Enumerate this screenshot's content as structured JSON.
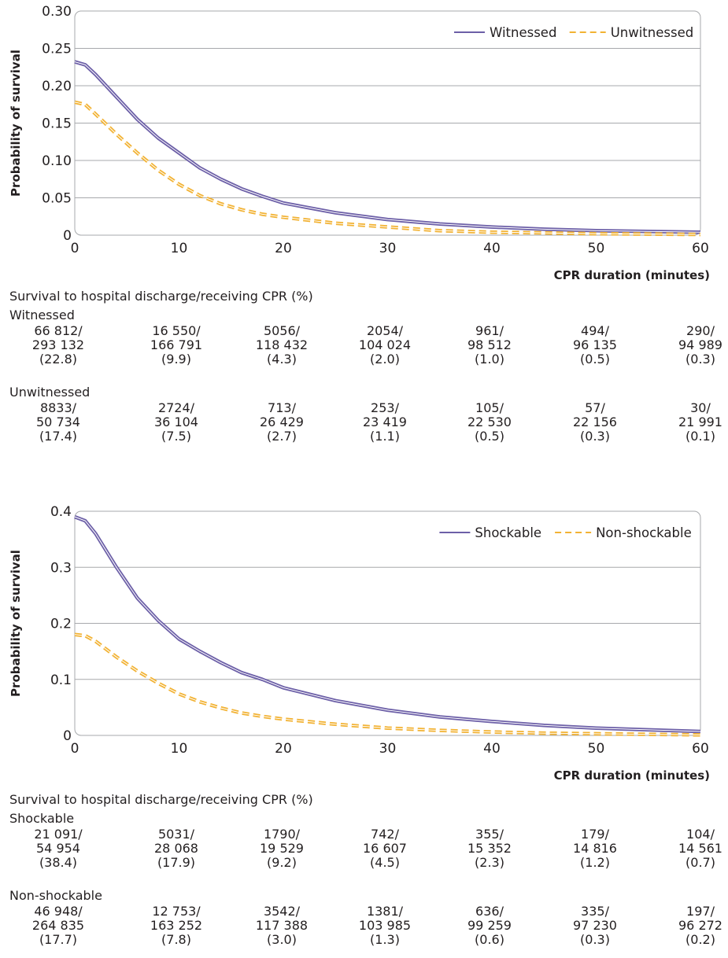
{
  "chart_data": [
    {
      "type": "line",
      "title": "",
      "xlabel": "CPR duration (minutes)",
      "ylabel": "Probability of survival",
      "xlim": [
        0,
        60
      ],
      "ylim": [
        0,
        0.3
      ],
      "xticks": [
        "0",
        "10",
        "20",
        "30",
        "40",
        "50",
        "60"
      ],
      "yticks": [
        "0",
        "0.05",
        "0.10",
        "0.15",
        "0.20",
        "0.25",
        "0.30"
      ],
      "grid": true,
      "legend_position": "top-right",
      "series": [
        {
          "name": "Witnessed",
          "style": "solid",
          "color": "#6c5fa7",
          "x": [
            0,
            1,
            2,
            4,
            6,
            8,
            10,
            12,
            14,
            16,
            18,
            20,
            25,
            30,
            35,
            40,
            45,
            50,
            55,
            60
          ],
          "y": [
            0.232,
            0.228,
            0.215,
            0.185,
            0.155,
            0.13,
            0.11,
            0.09,
            0.075,
            0.062,
            0.052,
            0.043,
            0.03,
            0.021,
            0.015,
            0.011,
            0.008,
            0.006,
            0.005,
            0.004
          ]
        },
        {
          "name": "Unwitnessed",
          "style": "dashed",
          "color": "#f2b233",
          "x": [
            0,
            1,
            2,
            4,
            6,
            8,
            10,
            12,
            14,
            16,
            18,
            20,
            25,
            30,
            35,
            40,
            45,
            50,
            55,
            60
          ],
          "y": [
            0.178,
            0.175,
            0.162,
            0.135,
            0.11,
            0.087,
            0.068,
            0.053,
            0.042,
            0.034,
            0.028,
            0.024,
            0.016,
            0.011,
            0.006,
            0.004,
            0.003,
            0.002,
            0.0015,
            0.001
          ]
        }
      ],
      "table": {
        "header": "Survival to hospital discharge/receiving CPR (%)",
        "groups": [
          {
            "name": "Witnessed",
            "cells": [
              [
                "66 812/",
                "293 132",
                "(22.8)"
              ],
              [
                "16 550/",
                "166 791",
                "(9.9)"
              ],
              [
                "5056/",
                "118 432",
                "(4.3)"
              ],
              [
                "2054/",
                "104 024",
                "(2.0)"
              ],
              [
                "961/",
                "98 512",
                "(1.0)"
              ],
              [
                "494/",
                "96 135",
                "(0.5)"
              ],
              [
                "290/",
                "94 989",
                "(0.3)"
              ]
            ]
          },
          {
            "name": "Unwitnessed",
            "cells": [
              [
                "8833/",
                "50 734",
                "(17.4)"
              ],
              [
                "2724/",
                "36 104",
                "(7.5)"
              ],
              [
                "713/",
                "26 429",
                "(2.7)"
              ],
              [
                "253/",
                "23 419",
                "(1.1)"
              ],
              [
                "105/",
                "22 530",
                "(0.5)"
              ],
              [
                "57/",
                "22 156",
                "(0.3)"
              ],
              [
                "30/",
                "21 991",
                "(0.1)"
              ]
            ]
          }
        ]
      }
    },
    {
      "type": "line",
      "title": "",
      "xlabel": "CPR duration (minutes)",
      "ylabel": "Probability of survival",
      "xlim": [
        0,
        60
      ],
      "ylim": [
        0,
        0.4
      ],
      "xticks": [
        "0",
        "10",
        "20",
        "30",
        "40",
        "50",
        "60"
      ],
      "yticks": [
        "0",
        "0.1",
        "0.2",
        "0.3",
        "0.4"
      ],
      "grid": true,
      "legend_position": "top-right",
      "series": [
        {
          "name": "Shockable",
          "style": "solid",
          "color": "#6c5fa7",
          "x": [
            0,
            1,
            2,
            4,
            6,
            8,
            10,
            12,
            14,
            16,
            18,
            20,
            25,
            30,
            35,
            40,
            45,
            50,
            55,
            60
          ],
          "y": [
            0.39,
            0.383,
            0.36,
            0.3,
            0.245,
            0.205,
            0.172,
            0.15,
            0.13,
            0.112,
            0.1,
            0.085,
            0.062,
            0.045,
            0.033,
            0.025,
            0.018,
            0.013,
            0.01,
            0.007
          ]
        },
        {
          "name": "Non-shockable",
          "style": "dashed",
          "color": "#f2b233",
          "x": [
            0,
            1,
            2,
            4,
            6,
            8,
            10,
            12,
            14,
            16,
            18,
            20,
            25,
            30,
            35,
            40,
            45,
            50,
            55,
            60
          ],
          "y": [
            0.18,
            0.178,
            0.168,
            0.14,
            0.115,
            0.093,
            0.074,
            0.06,
            0.049,
            0.04,
            0.034,
            0.029,
            0.02,
            0.013,
            0.009,
            0.006,
            0.004,
            0.003,
            0.002,
            0.001
          ]
        }
      ],
      "table": {
        "header": "Survival to hospital discharge/receiving CPR (%)",
        "groups": [
          {
            "name": "Shockable",
            "cells": [
              [
                "21 091/",
                "54 954",
                "(38.4)"
              ],
              [
                "5031/",
                "28 068",
                "(17.9)"
              ],
              [
                "1790/",
                "19 529",
                "(9.2)"
              ],
              [
                "742/",
                "16 607",
                "(4.5)"
              ],
              [
                "355/",
                "15 352",
                "(2.3)"
              ],
              [
                "179/",
                "14 816",
                "(1.2)"
              ],
              [
                "104/",
                "14 561",
                "(0.7)"
              ]
            ]
          },
          {
            "name": "Non-shockable",
            "cells": [
              [
                "46 948/",
                "264 835",
                "(17.7)"
              ],
              [
                "12 753/",
                "163 252",
                "(7.8)"
              ],
              [
                "3542/",
                "117 388",
                "(3.0)"
              ],
              [
                "1381/",
                "103 985",
                "(1.3)"
              ],
              [
                "636/",
                "99 259",
                "(0.6)"
              ],
              [
                "335/",
                "97 230",
                "(0.3)"
              ],
              [
                "197/",
                "96 272",
                "(0.2)"
              ]
            ]
          }
        ]
      }
    }
  ]
}
